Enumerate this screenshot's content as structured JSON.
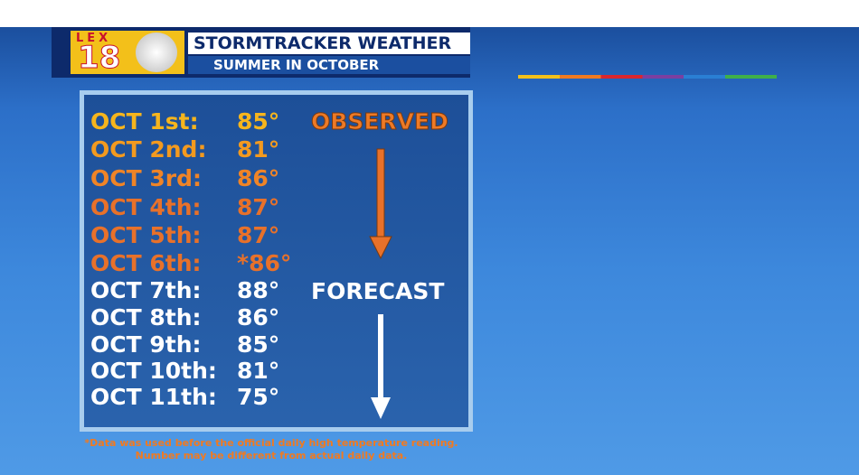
{
  "header": {
    "station": "LEX",
    "channel": "18",
    "brand": "STORMTRACKER WEATHER",
    "subtitle": "SUMMER IN OCTOBER"
  },
  "table": {
    "rows": [
      [
        "OCT 1st:",
        "85°"
      ],
      [
        "OCT 2nd:",
        "81°"
      ],
      [
        "OCT 3rd:",
        "86°"
      ],
      [
        "OCT 4th:",
        "87°"
      ],
      [
        "OCT 5th:",
        "87°"
      ],
      [
        "OCT 6th:",
        "*86°"
      ],
      [
        "OCT 7th:",
        "88°"
      ],
      [
        "OCT 8th:",
        "86°"
      ],
      [
        "OCT 9th:",
        "85°"
      ],
      [
        "OCT 10th:",
        "81°"
      ],
      [
        "OCT 11th:",
        "75°"
      ]
    ]
  },
  "labels": {
    "observed": "OBSERVED",
    "forecast": "FORECAST"
  },
  "footnote": [
    "*Data was used before the official daily high temperature reading.",
    "Number may be different from actual daily data."
  ]
}
